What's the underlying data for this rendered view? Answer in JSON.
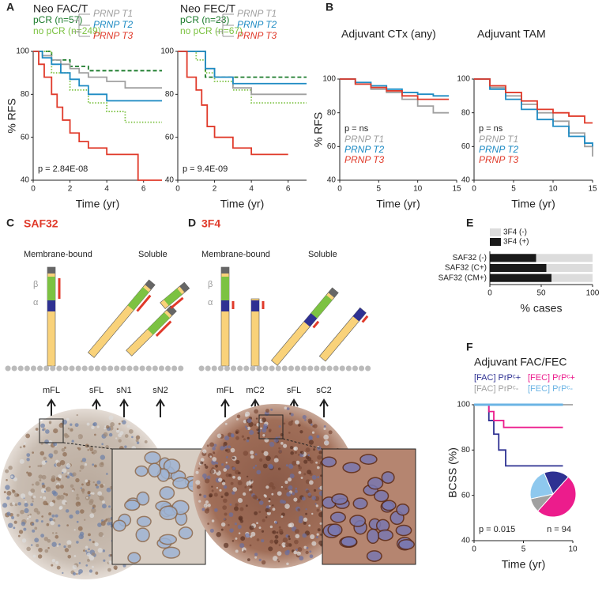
{
  "chart_data": [
    {
      "type": "line",
      "step": true,
      "title": "Neo FAC/T",
      "ylabel": "% RFS",
      "xlabel": "Time (yr)",
      "annotation": "p = 2.84E-08",
      "xlim": [
        0,
        7
      ],
      "xticks": [
        0,
        2,
        4,
        6
      ],
      "ylim": [
        40,
        100
      ],
      "yticks": [
        40,
        60,
        80,
        100
      ],
      "series": [
        {
          "name": "pCR (n=57)",
          "color": "#1a7a2a",
          "dash": "dashed",
          "x": [
            0,
            1,
            2,
            3,
            7
          ],
          "values": [
            100,
            96,
            93,
            91,
            91
          ]
        },
        {
          "name": "no pCR (n=249)",
          "color": "#7cc242",
          "dash": "dotted",
          "x": [
            0,
            1,
            2,
            3,
            4,
            5,
            7
          ],
          "values": [
            100,
            90,
            82,
            76,
            72,
            67,
            67
          ]
        },
        {
          "name": "PRNP T1",
          "color": "#a0a0a0",
          "dash": "solid",
          "x": [
            0,
            0.5,
            1,
            1.5,
            2,
            2.5,
            3,
            4,
            5,
            7
          ],
          "values": [
            100,
            98,
            96,
            94,
            92,
            90,
            88,
            86,
            83,
            83
          ]
        },
        {
          "name": "PRNP T2",
          "color": "#1e8bc3",
          "dash": "solid",
          "x": [
            0,
            0.5,
            1,
            1.5,
            2,
            2.5,
            3,
            4,
            7
          ],
          "values": [
            100,
            97,
            94,
            90,
            87,
            84,
            80,
            77,
            77
          ]
        },
        {
          "name": "PRNP T3",
          "color": "#e03a2a",
          "dash": "solid",
          "x": [
            0,
            0.3,
            0.6,
            1,
            1.3,
            1.6,
            2,
            2.5,
            3,
            4,
            5.7,
            7
          ],
          "values": [
            100,
            94,
            88,
            80,
            74,
            68,
            62,
            58,
            55,
            52,
            40,
            40
          ]
        }
      ]
    },
    {
      "type": "line",
      "step": true,
      "title": "Neo FEC/T",
      "xlabel": "Time (yr)",
      "annotation": "p = 9.4E-09",
      "xlim": [
        0,
        7
      ],
      "xticks": [
        0,
        2,
        4,
        6
      ],
      "ylim": [
        40,
        100
      ],
      "yticks": [
        40,
        60,
        80,
        100
      ],
      "series": [
        {
          "name": "pCR (n=23)",
          "color": "#1a7a2a",
          "dash": "dashed",
          "x": [
            0,
            1,
            1.5,
            7
          ],
          "values": [
            100,
            100,
            88,
            88
          ]
        },
        {
          "name": "no pCR (n=67)",
          "color": "#7cc242",
          "dash": "dotted",
          "x": [
            0,
            1,
            1.5,
            2,
            3,
            4,
            7
          ],
          "values": [
            100,
            96,
            90,
            86,
            82,
            76,
            76
          ]
        },
        {
          "name": "PRNP T1",
          "color": "#a0a0a0",
          "dash": "solid",
          "x": [
            0,
            1,
            1.5,
            2,
            3,
            4,
            7
          ],
          "values": [
            100,
            100,
            92,
            88,
            83,
            80,
            80
          ]
        },
        {
          "name": "PRNP T2",
          "color": "#1e8bc3",
          "dash": "solid",
          "x": [
            0,
            1.2,
            1.5,
            2,
            3,
            7
          ],
          "values": [
            100,
            100,
            92,
            88,
            85,
            85
          ]
        },
        {
          "name": "PRNP T3",
          "color": "#e03a2a",
          "dash": "solid",
          "x": [
            0,
            0.5,
            1,
            1.3,
            1.6,
            2,
            3,
            4,
            6
          ],
          "values": [
            100,
            88,
            82,
            75,
            65,
            60,
            55,
            52,
            52
          ]
        }
      ]
    },
    {
      "type": "line",
      "step": true,
      "title": "Adjuvant CTx (any)",
      "ylabel": "% RFS",
      "xlabel": "Time (yr)",
      "annotation": "p = ns",
      "xlim": [
        0,
        15
      ],
      "xticks": [
        0,
        5,
        10,
        15
      ],
      "ylim": [
        40,
        100
      ],
      "yticks": [
        40,
        60,
        80,
        100
      ],
      "series": [
        {
          "name": "PRNP T1",
          "color": "#a0a0a0",
          "dash": "solid",
          "x": [
            0,
            2,
            4,
            6,
            8,
            10,
            12,
            14
          ],
          "values": [
            100,
            97,
            94,
            92,
            88,
            84,
            80,
            80
          ]
        },
        {
          "name": "PRNP T2",
          "color": "#1e8bc3",
          "dash": "solid",
          "x": [
            0,
            2,
            4,
            6,
            8,
            10,
            12,
            14
          ],
          "values": [
            100,
            98,
            96,
            94,
            92,
            91,
            90,
            90
          ]
        },
        {
          "name": "PRNP T3",
          "color": "#e03a2a",
          "dash": "solid",
          "x": [
            0,
            2,
            4,
            6,
            8,
            10,
            12,
            14
          ],
          "values": [
            100,
            97,
            95,
            93,
            90,
            88,
            88,
            88
          ]
        }
      ]
    },
    {
      "type": "line",
      "step": true,
      "title": "Adjuvant TAM",
      "xlabel": "Time (yr)",
      "annotation": "p = ns",
      "xlim": [
        0,
        15
      ],
      "xticks": [
        0,
        5,
        10,
        15
      ],
      "ylim": [
        40,
        100
      ],
      "yticks": [
        40,
        60,
        80,
        100
      ],
      "series": [
        {
          "name": "PRNP T1",
          "color": "#a0a0a0",
          "dash": "solid",
          "x": [
            0,
            2,
            4,
            6,
            8,
            10,
            12,
            14,
            15
          ],
          "values": [
            100,
            95,
            90,
            85,
            80,
            75,
            68,
            60,
            54
          ]
        },
        {
          "name": "PRNP T2",
          "color": "#1e8bc3",
          "dash": "solid",
          "x": [
            0,
            2,
            4,
            6,
            8,
            10,
            12,
            14,
            15
          ],
          "values": [
            100,
            94,
            88,
            82,
            76,
            72,
            66,
            62,
            60
          ]
        },
        {
          "name": "PRNP T3",
          "color": "#e03a2a",
          "dash": "solid",
          "x": [
            0,
            2,
            4,
            6,
            8,
            10,
            12,
            14,
            15
          ],
          "values": [
            100,
            96,
            92,
            87,
            82,
            80,
            78,
            74,
            74
          ]
        }
      ]
    },
    {
      "type": "bar",
      "orientation": "horizontal",
      "stacked": true,
      "xlabel": "% cases",
      "categories": [
        "SAF32 (-)",
        "SAF32 (C+)",
        "SAF32 (CM+)"
      ],
      "xlim": [
        0,
        100
      ],
      "xticks": [
        0,
        50,
        100
      ],
      "series": [
        {
          "name": "3F4 (+)",
          "color": "#1a1a1a",
          "values": [
            45,
            55,
            60
          ]
        },
        {
          "name": "3F4 (-)",
          "color": "#dcdcdc",
          "values": [
            55,
            45,
            40
          ]
        }
      ]
    },
    {
      "type": "line",
      "step": true,
      "title": "Adjuvant FAC/FEC",
      "ylabel": "BCSS (%)",
      "xlabel": "Time (yr)",
      "annotation": "p = 0.015",
      "annotation2": "n = 94",
      "xlim": [
        0,
        10
      ],
      "xticks": [
        0,
        5,
        10
      ],
      "ylim": [
        40,
        100
      ],
      "yticks": [
        40,
        60,
        80,
        100
      ],
      "series": [
        {
          "name": "[FAC] PrPᶜ+",
          "color": "#2e3192",
          "dash": "solid",
          "x": [
            0,
            1.5,
            2,
            2.5,
            3,
            3.2,
            9
          ],
          "values": [
            100,
            93,
            87,
            80,
            80,
            73,
            73
          ]
        },
        {
          "name": "[FEC] PrPᶜ+",
          "color": "#ec1c8c",
          "dash": "solid",
          "x": [
            0,
            1.5,
            2,
            3,
            9
          ],
          "values": [
            100,
            97,
            93,
            90,
            90
          ]
        },
        {
          "name": "[FAC] PrPᶜ-",
          "color": "#a0a0a0",
          "dash": "solid",
          "x": [
            0,
            10
          ],
          "values": [
            100,
            100
          ]
        },
        {
          "name": "[FEC] PrPᶜ-",
          "color": "#6cb4e4",
          "dash": "solid",
          "x": [
            0,
            9
          ],
          "values": [
            100,
            100
          ]
        }
      ]
    },
    {
      "type": "pie",
      "values": [
        18,
        50,
        10,
        22
      ],
      "colors": [
        "#2e3192",
        "#ec1c8c",
        "#a0a0a0",
        "#8ec8ee"
      ]
    }
  ],
  "panels": {
    "letters": [
      "A",
      "B",
      "C",
      "D",
      "E",
      "F"
    ],
    "C": {
      "title": "SAF32",
      "left": "Membrane-bound",
      "right": "Soluble",
      "beta": "β",
      "alpha": "α",
      "forms": [
        "mFL",
        "sFL",
        "sN1",
        "sN2"
      ]
    },
    "D": {
      "title": "3F4",
      "left": "Membrane-bound",
      "right": "Soluble",
      "beta": "β",
      "alpha": "α",
      "forms": [
        "mFL",
        "mC2",
        "sFL",
        "sC2"
      ]
    }
  }
}
